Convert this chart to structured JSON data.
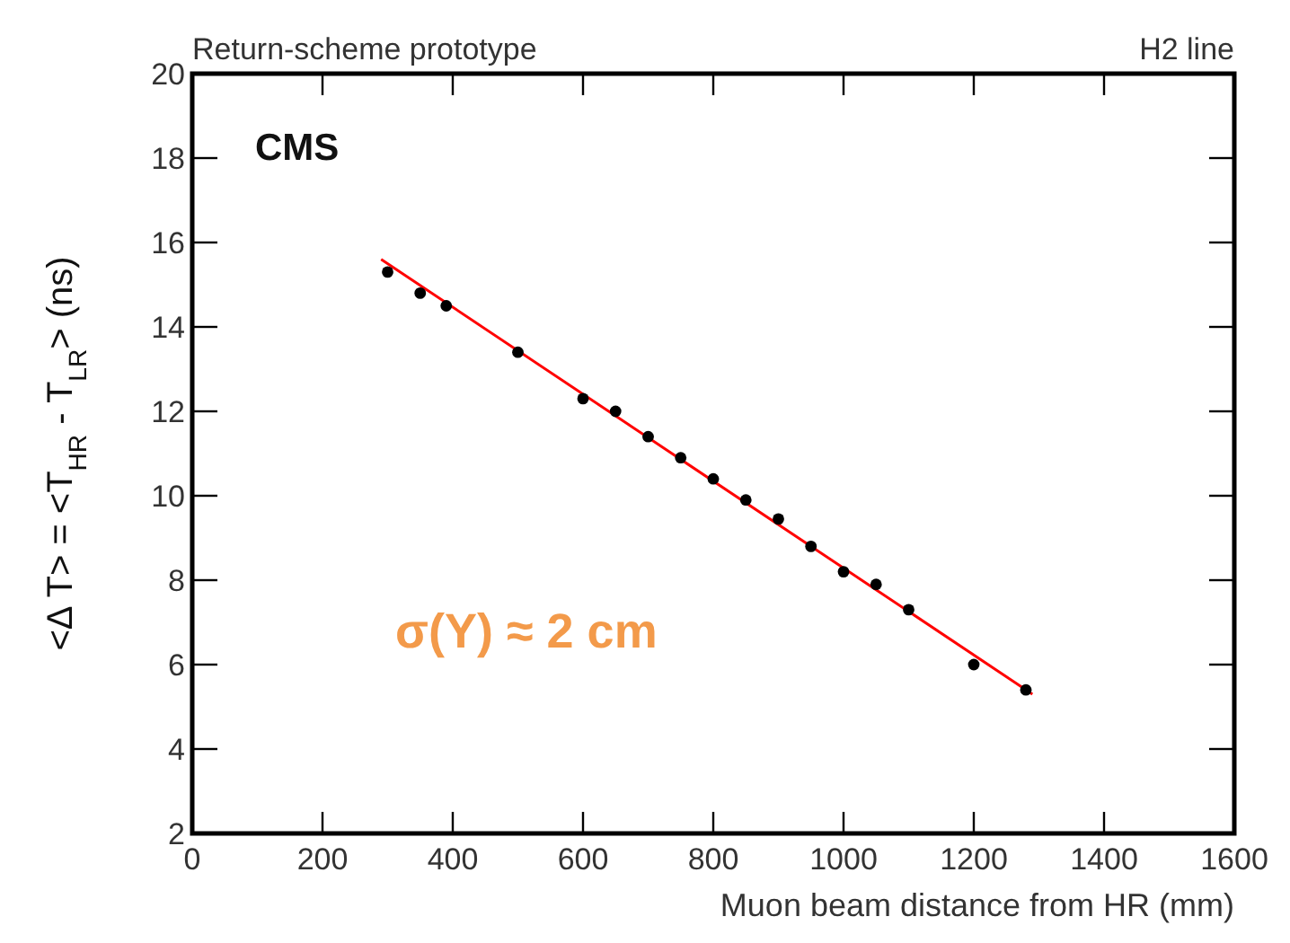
{
  "chart_data": {
    "type": "scatter",
    "title": "Return-scheme prototype",
    "xlabel": "Muon beam distance from HR (mm)",
    "ylabel": "<Δ T> = <T$_{HR}$ - T$_{LR}$> (ns)",
    "annotations": [
      "H2 line",
      "CMS",
      "σ(Y) ≈ 2 cm"
    ],
    "xlim": [
      0,
      1600
    ],
    "xticks": [
      0,
      200,
      400,
      600,
      800,
      1000,
      1200,
      1400,
      1600
    ],
    "ylim": [
      2,
      20
    ],
    "yticks": [
      2,
      4,
      6,
      8,
      10,
      12,
      14,
      16,
      18,
      20
    ],
    "grid": false,
    "series": [
      {
        "color": "#000000",
        "marker": "circle",
        "x": [
          300,
          350,
          390,
          500,
          600,
          650,
          700,
          750,
          800,
          850,
          900,
          950,
          1000,
          1050,
          1100,
          1200,
          1280
        ],
        "values": [
          15.3,
          14.8,
          14.5,
          13.4,
          12.3,
          12.0,
          11.4,
          10.9,
          10.4,
          9.9,
          9.45,
          8.8,
          8.2,
          7.9,
          7.3,
          6.0,
          5.4
        ]
      },
      {
        "type": "line",
        "color": "#ff0000",
        "line_style": "solid",
        "marker": "none",
        "x": [
          290,
          1290
        ],
        "values": [
          15.6,
          5.3
        ]
      }
    ]
  }
}
